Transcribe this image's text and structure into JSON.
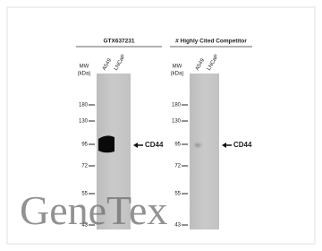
{
  "panels": [
    {
      "title": "GTX637231",
      "mw_label": [
        "MW",
        "(kDa)"
      ],
      "lanes": [
        "A549",
        "LNCaP"
      ],
      "markers": [
        "180",
        "130",
        "95",
        "72",
        "55",
        "43"
      ],
      "target": "CD44"
    },
    {
      "title": "# Highly Cited Competitor",
      "mw_label": [
        "MW",
        "(kDa)"
      ],
      "lanes": [
        "A549",
        "LNCaP"
      ],
      "markers": [
        "180",
        "130",
        "95",
        "72",
        "55",
        "43"
      ],
      "target": "CD44"
    }
  ],
  "watermark": "GeneTex"
}
